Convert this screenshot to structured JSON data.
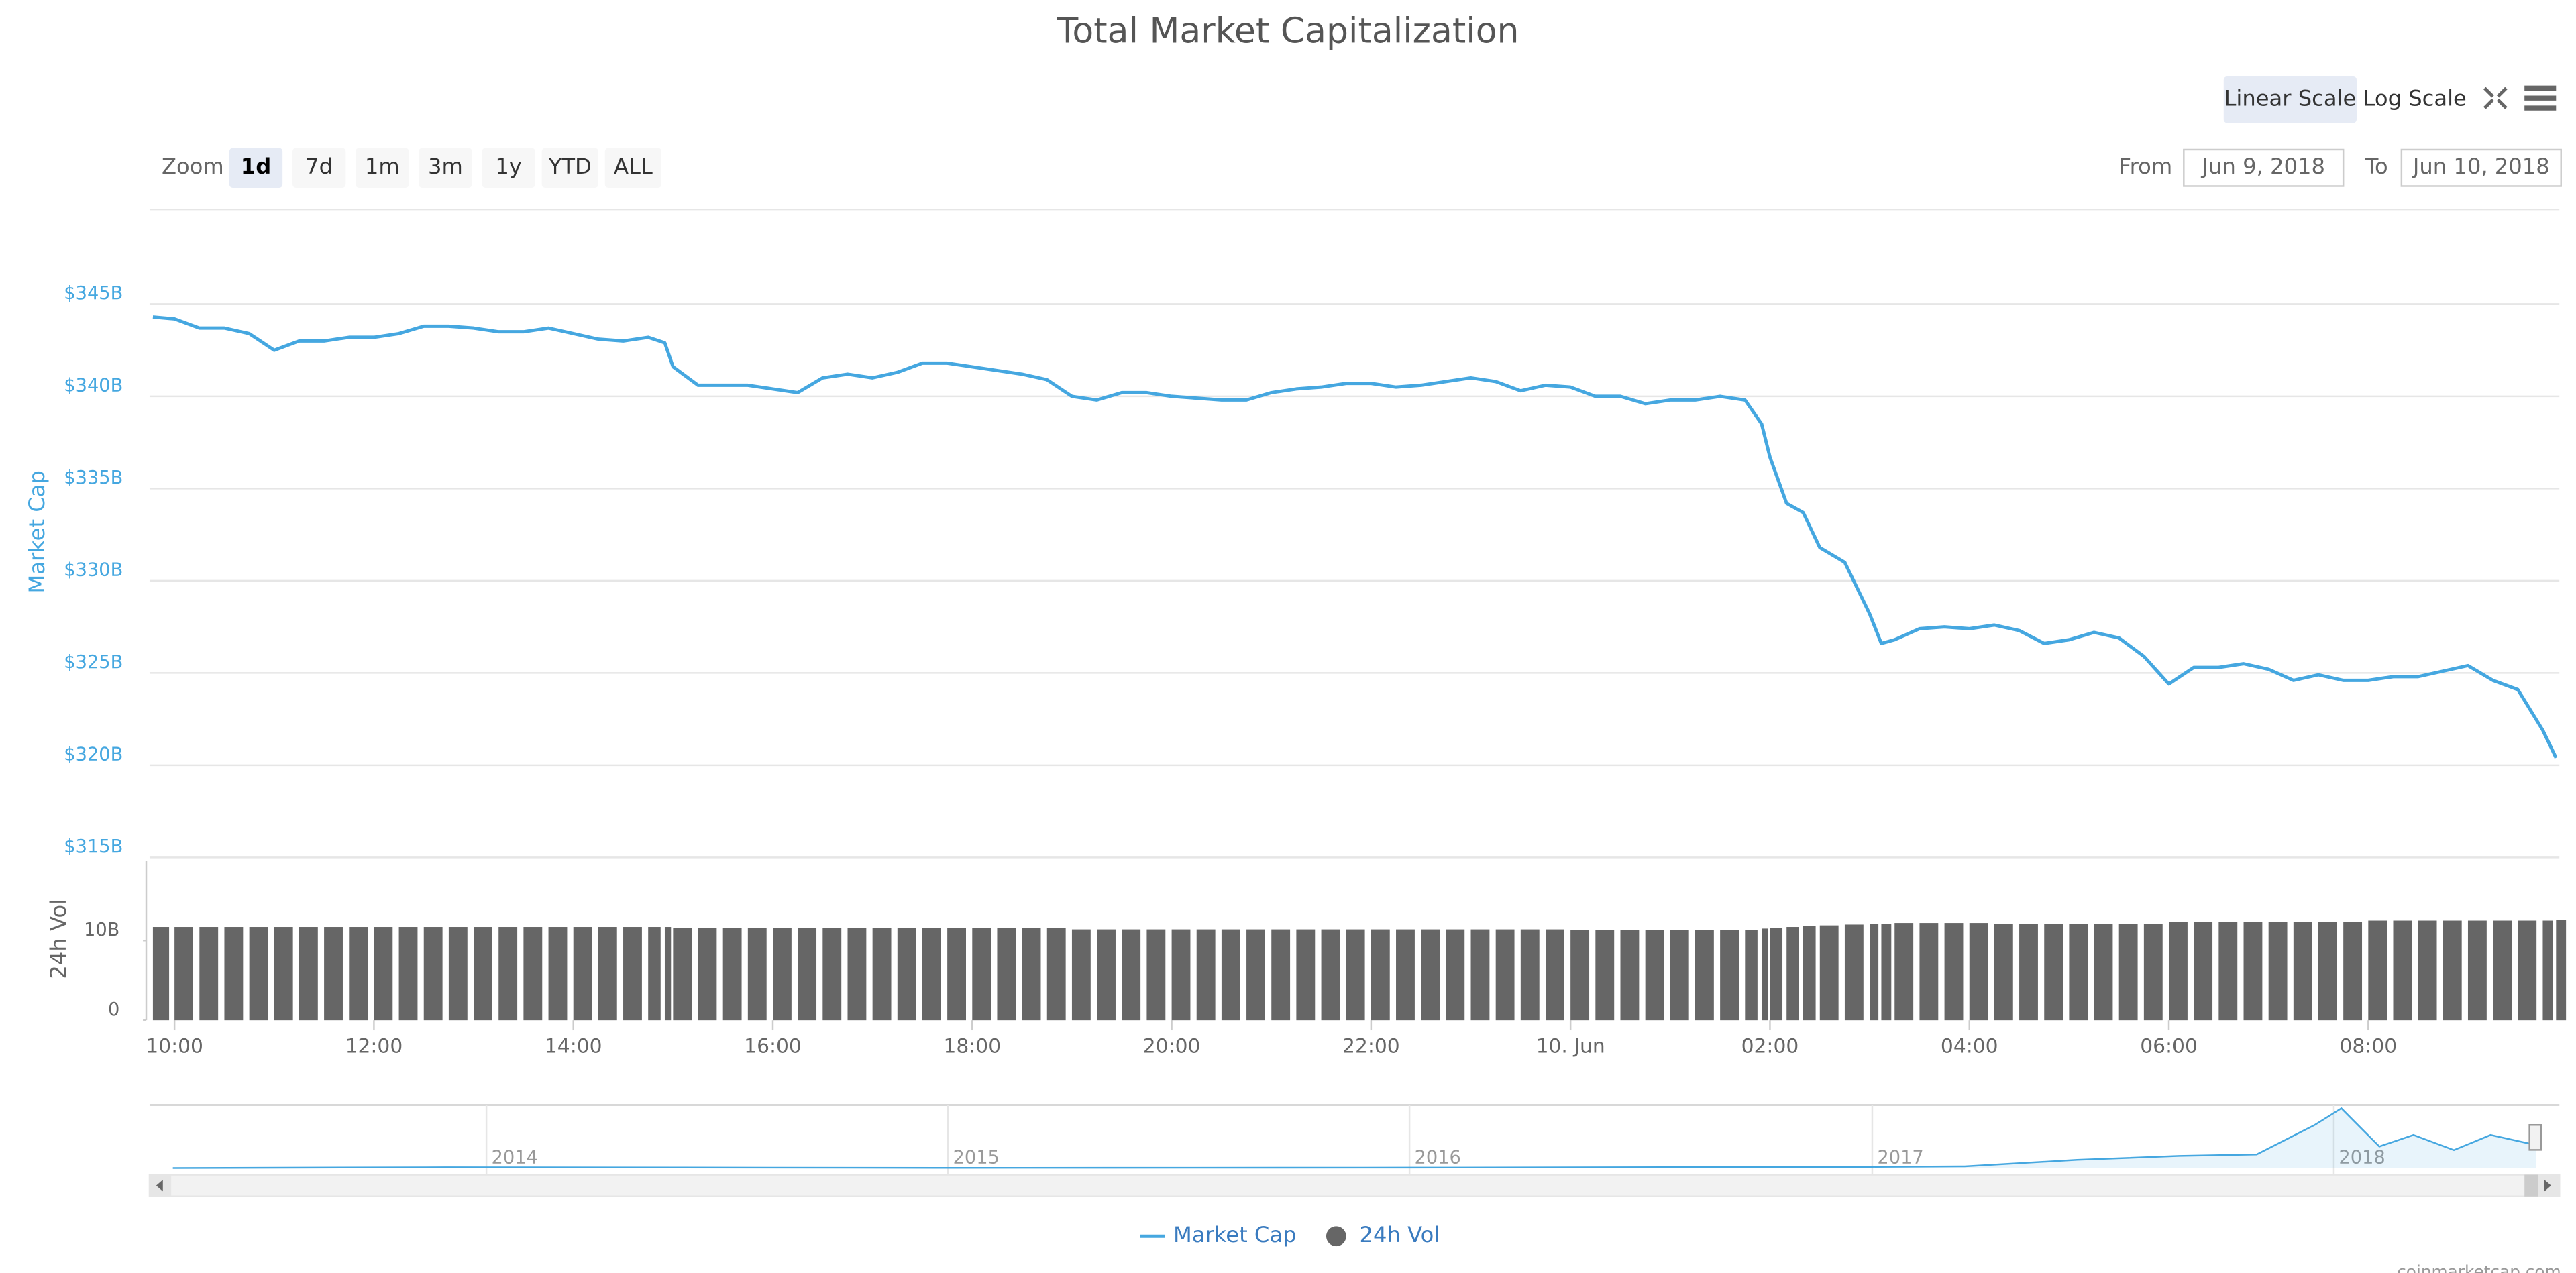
{
  "title": "Total Market Capitalization",
  "controls": {
    "zoom": {
      "label": "Zoom",
      "buttons": [
        "1d",
        "7d",
        "1m",
        "3m",
        "1y",
        "YTD",
        "ALL"
      ],
      "selected": 0
    },
    "scale_buttons": [
      "Linear Scale",
      "Log Scale"
    ],
    "range": {
      "from_label": "From",
      "from": "Jun 9, 2018",
      "to_label": "To",
      "to": "Jun 10, 2018"
    }
  },
  "credits": "coinmarketcap.com",
  "chart_data": [
    {
      "type": "line",
      "y_label": "Market Cap",
      "y2_label": "24h Vol",
      "log_scale": false,
      "grid": true,
      "legend": "bottom",
      "x": [
        "2018-06-09T09:47",
        "2018-06-09T10:00",
        "2018-06-09T10:15",
        "2018-06-09T10:30",
        "2018-06-09T10:45",
        "2018-06-09T11:00",
        "2018-06-09T11:15",
        "2018-06-09T11:30",
        "2018-06-09T11:45",
        "2018-06-09T12:00",
        "2018-06-09T12:15",
        "2018-06-09T12:30",
        "2018-06-09T12:45",
        "2018-06-09T13:00",
        "2018-06-09T13:15",
        "2018-06-09T13:30",
        "2018-06-09T13:45",
        "2018-06-09T14:00",
        "2018-06-09T14:15",
        "2018-06-09T14:30",
        "2018-06-09T14:45",
        "2018-06-09T14:55",
        "2018-06-09T15:00",
        "2018-06-09T15:15",
        "2018-06-09T15:30",
        "2018-06-09T15:45",
        "2018-06-09T16:00",
        "2018-06-09T16:15",
        "2018-06-09T16:30",
        "2018-06-09T16:45",
        "2018-06-09T17:00",
        "2018-06-09T17:15",
        "2018-06-09T17:30",
        "2018-06-09T17:45",
        "2018-06-09T18:00",
        "2018-06-09T18:15",
        "2018-06-09T18:30",
        "2018-06-09T18:45",
        "2018-06-09T19:00",
        "2018-06-09T19:15",
        "2018-06-09T19:30",
        "2018-06-09T19:45",
        "2018-06-09T20:00",
        "2018-06-09T20:15",
        "2018-06-09T20:30",
        "2018-06-09T20:45",
        "2018-06-09T21:00",
        "2018-06-09T21:15",
        "2018-06-09T21:30",
        "2018-06-09T21:45",
        "2018-06-09T22:00",
        "2018-06-09T22:15",
        "2018-06-09T22:30",
        "2018-06-09T22:45",
        "2018-06-09T23:00",
        "2018-06-09T23:15",
        "2018-06-09T23:30",
        "2018-06-09T23:45",
        "2018-06-10T00:00",
        "2018-06-10T00:15",
        "2018-06-10T00:30",
        "2018-06-10T00:45",
        "2018-06-10T01:00",
        "2018-06-10T01:15",
        "2018-06-10T01:30",
        "2018-06-10T01:45",
        "2018-06-10T01:55",
        "2018-06-10T02:00",
        "2018-06-10T02:10",
        "2018-06-10T02:20",
        "2018-06-10T02:30",
        "2018-06-10T02:45",
        "2018-06-10T03:00",
        "2018-06-10T03:07",
        "2018-06-10T03:15",
        "2018-06-10T03:30",
        "2018-06-10T03:45",
        "2018-06-10T04:00",
        "2018-06-10T04:15",
        "2018-06-10T04:30",
        "2018-06-10T04:45",
        "2018-06-10T05:00",
        "2018-06-10T05:15",
        "2018-06-10T05:30",
        "2018-06-10T05:45",
        "2018-06-10T06:00",
        "2018-06-10T06:15",
        "2018-06-10T06:30",
        "2018-06-10T06:45",
        "2018-06-10T07:00",
        "2018-06-10T07:15",
        "2018-06-10T07:30",
        "2018-06-10T07:45",
        "2018-06-10T08:00",
        "2018-06-10T08:15",
        "2018-06-10T08:30",
        "2018-06-10T08:45",
        "2018-06-10T09:00",
        "2018-06-10T09:15",
        "2018-06-10T09:30",
        "2018-06-10T09:45",
        "2018-06-10T09:53"
      ],
      "xlim": [
        "2018-06-09T09:47",
        "2018-06-10T09:53"
      ],
      "xticks": [
        {
          "value": "2018-06-09T10:00",
          "label": "10:00"
        },
        {
          "value": "2018-06-09T12:00",
          "label": "12:00"
        },
        {
          "value": "2018-06-09T14:00",
          "label": "14:00"
        },
        {
          "value": "2018-06-09T16:00",
          "label": "16:00"
        },
        {
          "value": "2018-06-09T18:00",
          "label": "18:00"
        },
        {
          "value": "2018-06-09T20:00",
          "label": "20:00"
        },
        {
          "value": "2018-06-09T22:00",
          "label": "22:00"
        },
        {
          "value": "2018-06-10T00:00",
          "label": "10. Jun"
        },
        {
          "value": "2018-06-10T02:00",
          "label": "02:00"
        },
        {
          "value": "2018-06-10T04:00",
          "label": "04:00"
        },
        {
          "value": "2018-06-10T06:00",
          "label": "06:00"
        },
        {
          "value": "2018-06-10T08:00",
          "label": "08:00"
        }
      ],
      "ylim": [
        315,
        350
      ],
      "yticks": [
        {
          "value": 315,
          "label": "$315B"
        },
        {
          "value": 320,
          "label": "$320B"
        },
        {
          "value": 325,
          "label": "$325B"
        },
        {
          "value": 330,
          "label": "$330B"
        },
        {
          "value": 335,
          "label": "$335B"
        },
        {
          "value": 340,
          "label": "$340B"
        },
        {
          "value": 345,
          "label": "$345B"
        }
      ],
      "y2lim": [
        0,
        20
      ],
      "y2ticks": [
        0,
        {
          "value": 10,
          "label": "10B"
        }
      ],
      "series": [
        {
          "name": "Market Cap",
          "color": "#45a7e0",
          "values": [
            344.3,
            344.2,
            343.7,
            343.7,
            343.4,
            342.5,
            343.0,
            343.0,
            343.2,
            343.2,
            343.4,
            343.8,
            343.8,
            343.7,
            343.5,
            343.5,
            343.7,
            343.4,
            343.1,
            343.0,
            343.2,
            342.9,
            341.6,
            340.6,
            340.6,
            340.6,
            340.4,
            340.2,
            341.0,
            341.2,
            341.0,
            341.3,
            341.8,
            341.8,
            341.6,
            341.4,
            341.2,
            340.9,
            340.0,
            339.8,
            340.2,
            340.2,
            340.0,
            339.9,
            339.8,
            339.8,
            340.2,
            340.4,
            340.5,
            340.7,
            340.7,
            340.5,
            340.6,
            340.8,
            341.0,
            340.8,
            340.3,
            340.6,
            340.5,
            340.0,
            340.0,
            339.6,
            339.8,
            339.8,
            340.0,
            339.8,
            338.5,
            336.7,
            334.2,
            333.7,
            331.8,
            331.0,
            328.2,
            326.6,
            326.8,
            327.4,
            327.5,
            327.4,
            327.6,
            327.3,
            326.6,
            326.8,
            327.2,
            326.9,
            325.9,
            324.4,
            325.3,
            325.3,
            325.5,
            325.2,
            324.6,
            324.9,
            324.6,
            324.6,
            324.8,
            324.8,
            325.1,
            325.4,
            324.6,
            324.1,
            321.9,
            320.4
          ]
        },
        {
          "name": "24h Vol",
          "color": "#666666",
          "type": "column",
          "axis": "y2",
          "values": [
            11.7,
            11.7,
            11.7,
            11.7,
            11.7,
            11.7,
            11.7,
            11.7,
            11.7,
            11.7,
            11.7,
            11.7,
            11.7,
            11.7,
            11.7,
            11.7,
            11.7,
            11.7,
            11.7,
            11.7,
            11.7,
            11.7,
            11.6,
            11.6,
            11.6,
            11.6,
            11.6,
            11.6,
            11.6,
            11.6,
            11.6,
            11.6,
            11.6,
            11.6,
            11.6,
            11.6,
            11.6,
            11.6,
            11.4,
            11.4,
            11.4,
            11.4,
            11.4,
            11.4,
            11.4,
            11.4,
            11.4,
            11.4,
            11.4,
            11.4,
            11.4,
            11.4,
            11.4,
            11.4,
            11.4,
            11.4,
            11.4,
            11.4,
            11.3,
            11.3,
            11.3,
            11.3,
            11.3,
            11.3,
            11.3,
            11.3,
            11.5,
            11.6,
            11.7,
            11.8,
            11.9,
            12.0,
            12.1,
            12.1,
            12.2,
            12.2,
            12.2,
            12.2,
            12.1,
            12.1,
            12.1,
            12.1,
            12.1,
            12.1,
            12.1,
            12.3,
            12.3,
            12.3,
            12.3,
            12.3,
            12.3,
            12.3,
            12.3,
            12.5,
            12.5,
            12.5,
            12.5,
            12.5,
            12.5,
            12.5,
            12.5,
            12.6
          ]
        }
      ]
    },
    {
      "type": "area",
      "color": "#45a7e0",
      "x": [
        "2013-04-28",
        "2013-11-30",
        "2014-02-01",
        "2014-06-01",
        "2015-01-01",
        "2016-01-01",
        "2016-06-15",
        "2017-01-01",
        "2017-03-15",
        "2017-06-12",
        "2017-09-01",
        "2017-11-01",
        "2017-12-17",
        "2018-01-07",
        "2018-02-06",
        "2018-03-05",
        "2018-04-06",
        "2018-05-05",
        "2018-06-10"
      ],
      "values": [
        1.5,
        12,
        11,
        8,
        4,
        7,
        12,
        18,
        25,
        115,
        170,
        190,
        600,
        830,
        300,
        460,
        250,
        460,
        320
      ],
      "xlim": [
        "2013-04-28",
        "2018-06-10"
      ],
      "ylim": [
        0,
        830
      ],
      "xticks": [
        {
          "value": "2014-01-01",
          "label": "2014"
        },
        {
          "value": "2015-01-01",
          "label": "2015"
        },
        {
          "value": "2016-01-01",
          "label": "2016"
        },
        {
          "value": "2017-01-01",
          "label": "2017"
        },
        {
          "value": "2018-01-01",
          "label": "2018"
        }
      ]
    }
  ]
}
